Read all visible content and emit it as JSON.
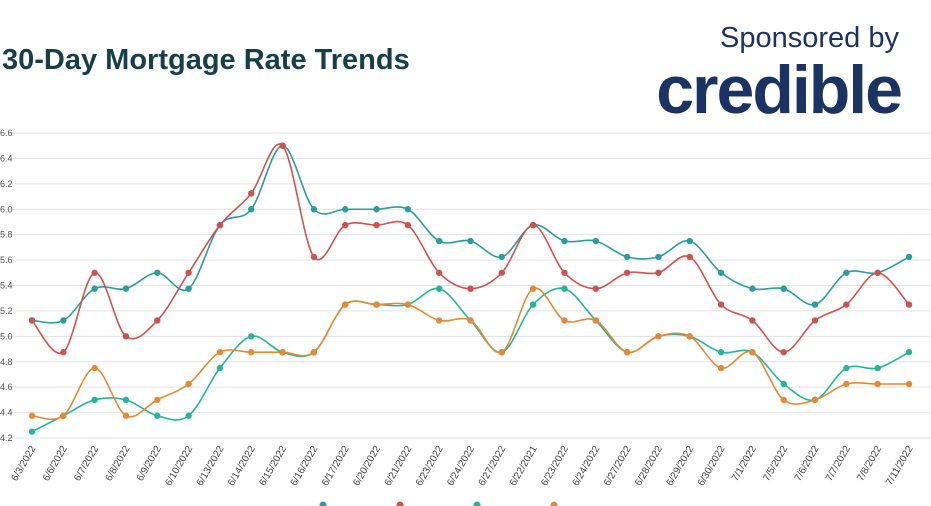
{
  "header": {
    "title": "30-Day Mortgage Rate Trends",
    "sponsor_label": "Sponsored by",
    "brand": "credible"
  },
  "chart_data": {
    "type": "line",
    "title": "30-Day Mortgage Rate Trends",
    "xlabel": "",
    "ylabel": "",
    "ylim": [
      4.2,
      6.6
    ],
    "yticks": [
      "4.2",
      "4.4",
      "4.6",
      "4.8",
      "5.0",
      "5.2",
      "5.4",
      "5.6",
      "5.8",
      "6.0",
      "6.2",
      "6.4",
      "6.6"
    ],
    "grid": true,
    "legend": "bottom",
    "categories": [
      "6/3/2022",
      "6/6/2022",
      "6/7/2022",
      "6/8/2022",
      "6/9/2022",
      "6/10/2022",
      "6/13/2022",
      "6/14/2022",
      "6/15/2022",
      "6/16/2022",
      "6/17/2022",
      "6/20/2022",
      "6/21/2022",
      "6/23/2022",
      "6/24/2022",
      "6/27/2022",
      "6/22/2021",
      "6/23/2022",
      "6/24/2022",
      "6/27/2022",
      "6/28/2022",
      "6/29/2022",
      "6/30/2022",
      "7/1/2022",
      "7/5/2022",
      "7/6/2022",
      "7/7/2022",
      "7/8/2022",
      "7/11/2022"
    ],
    "series": [
      {
        "color": "#2a9d9d",
        "values": [
          5.125,
          5.125,
          5.375,
          5.375,
          5.5,
          5.375,
          5.875,
          6.0,
          6.5,
          6.0,
          6.0,
          6.0,
          6.0,
          5.75,
          5.75,
          5.625,
          5.875,
          5.75,
          5.75,
          5.625,
          5.625,
          5.75,
          5.5,
          5.375,
          5.375,
          5.25,
          5.5,
          5.5,
          5.625
        ]
      },
      {
        "color": "#d0524f",
        "values": [
          5.125,
          4.875,
          5.5,
          5.0,
          5.125,
          5.5,
          5.875,
          6.125,
          6.5,
          5.625,
          5.875,
          5.875,
          5.875,
          5.5,
          5.375,
          5.5,
          5.875,
          5.5,
          5.375,
          5.5,
          5.5,
          5.625,
          5.25,
          5.125,
          4.875,
          5.125,
          5.25,
          5.5,
          5.25
        ]
      },
      {
        "color": "#26b59a",
        "values": [
          4.25,
          4.375,
          4.5,
          4.5,
          4.375,
          4.375,
          4.75,
          5.0,
          4.875,
          4.875,
          5.25,
          5.25,
          5.25,
          5.375,
          5.125,
          4.875,
          5.25,
          5.375,
          5.125,
          4.875,
          5.0,
          5.0,
          4.875,
          4.875,
          4.625,
          4.5,
          4.75,
          4.75,
          4.875
        ]
      },
      {
        "color": "#e58a34",
        "values": [
          4.375,
          4.375,
          4.75,
          4.375,
          4.5,
          4.625,
          4.875,
          4.875,
          4.875,
          4.875,
          5.25,
          5.25,
          5.25,
          5.125,
          5.125,
          4.875,
          5.375,
          5.125,
          5.125,
          4.875,
          5.0,
          5.0,
          4.75,
          4.875,
          4.5,
          4.5,
          4.625,
          4.625,
          4.625
        ]
      }
    ]
  }
}
